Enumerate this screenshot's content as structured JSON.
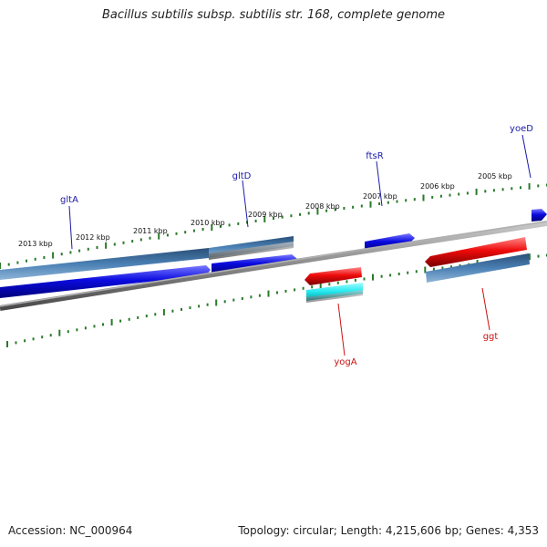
{
  "title": "Bacillus subtilis subsp. subtilis str. 168, complete genome",
  "footer": {
    "accession": "Accession: NC_000964",
    "summary": "Topology: circular; Length: 4,215,606 bp; Genes: 4,353"
  },
  "ruler": {
    "unit": "kbp",
    "labels": [
      "2013 kbp",
      "2012 kbp",
      "2011 kbp",
      "2010 kbp",
      "2009 kbp",
      "2008 kbp",
      "2007 kbp",
      "2006 kbp",
      "2005 kbp"
    ]
  },
  "genes": {
    "top": [
      "gltA",
      "gltD",
      "ftsR",
      "yoeD"
    ],
    "bottom": [
      "yogA",
      "ggt"
    ]
  },
  "colors": {
    "forward_label": "#1a1aa8",
    "reverse_label": "#cc1111",
    "cds_forward": "#0b0be0",
    "cds_reverse": "#ee0a0a",
    "gene_bar": "#3f6f9e",
    "rna": "#20e8ee",
    "ticks": "#2a7a2a",
    "backbone": "#777777"
  }
}
